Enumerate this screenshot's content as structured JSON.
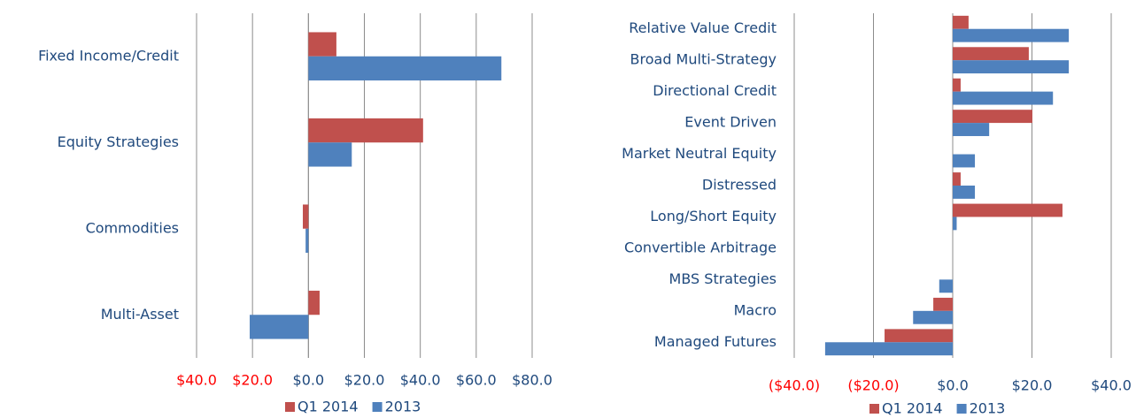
{
  "chart_data": [
    {
      "type": "bar",
      "orientation": "horizontal",
      "grid": true,
      "legend": "bottom",
      "negative_tick_color": "#ff0000",
      "categories": [
        "Fixed Income/Credit",
        "Equity Strategies",
        "Commodities",
        "Multi-Asset"
      ],
      "series": [
        {
          "name": "Q1 2014",
          "color": "#c0504d",
          "values": [
            10,
            41,
            -2,
            4
          ]
        },
        {
          "name": "2013",
          "color": "#4f81bd",
          "values": [
            69,
            15.5,
            -1,
            -21
          ]
        }
      ],
      "xlim": [
        -40,
        80
      ],
      "xticks": [
        {
          "value": -40,
          "label": "$40.0"
        },
        {
          "value": -20,
          "label": "$20.0"
        },
        {
          "value": 0,
          "label": "$0.0"
        },
        {
          "value": 20,
          "label": "$20.0"
        },
        {
          "value": 40,
          "label": "$40.0"
        },
        {
          "value": 60,
          "label": "$60.0"
        },
        {
          "value": 80,
          "label": "$80.0"
        }
      ]
    },
    {
      "type": "bar",
      "orientation": "horizontal",
      "grid": true,
      "legend": "bottom",
      "negative_tick_color": "#ff0000",
      "categories": [
        "Relative Value Credit",
        "Broad Multi-Strategy",
        "Directional Credit",
        "Event Driven",
        "Market Neutral Equity",
        "Distressed",
        "Long/Short Equity",
        "Convertible Arbitrage",
        "MBS Strategies",
        "Macro",
        "Managed Futures"
      ],
      "series": [
        {
          "name": "Q1 2014",
          "color": "#c0504d",
          "values": [
            4,
            19.2,
            2,
            20.1,
            0,
            2,
            27.7,
            0,
            0,
            -4.9,
            -17.2
          ]
        },
        {
          "name": "2013",
          "color": "#4f81bd",
          "values": [
            29.3,
            29.3,
            25.3,
            9.2,
            5.6,
            5.6,
            1,
            0,
            -3.4,
            -10,
            -32.2
          ]
        }
      ],
      "xlim": [
        -40,
        40
      ],
      "xticks": [
        {
          "value": -40,
          "label": "($40.0)"
        },
        {
          "value": -20,
          "label": "($20.0)"
        },
        {
          "value": 0,
          "label": "$0.0"
        },
        {
          "value": 20,
          "label": "$20.0"
        },
        {
          "value": 40,
          "label": "$40.0"
        }
      ]
    }
  ]
}
